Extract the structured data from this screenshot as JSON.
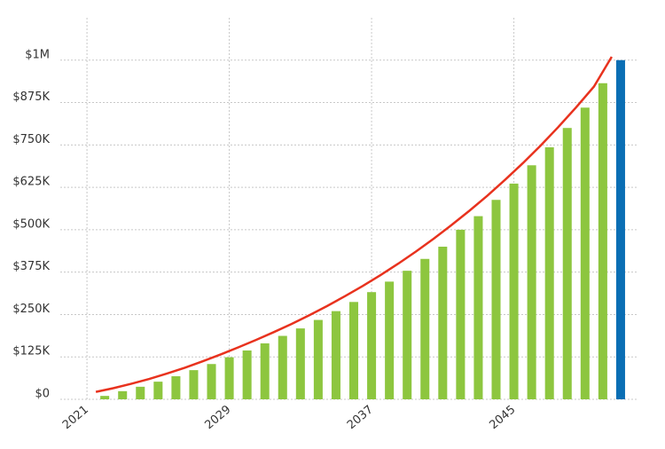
{
  "chart_data": {
    "type": "bar",
    "x": [
      2022,
      2023,
      2024,
      2025,
      2026,
      2027,
      2028,
      2029,
      2030,
      2031,
      2032,
      2033,
      2034,
      2035,
      2036,
      2037,
      2038,
      2039,
      2040,
      2041,
      2042,
      2043,
      2044,
      2045,
      2046,
      2047,
      2048,
      2049,
      2050,
      2051
    ],
    "series": [
      {
        "color": "#8dc63f",
        "values": [
          10000,
          24000,
          37000,
          52000,
          68000,
          86000,
          104000,
          124000,
          144000,
          165000,
          187000,
          209000,
          234000,
          260000,
          287000,
          316000,
          347000,
          379000,
          414000,
          450000,
          500000,
          540000,
          588000,
          636000,
          690000,
          743000,
          800000,
          860000,
          932000,
          null
        ]
      },
      {
        "color": "#0a6eb4",
        "values": [
          null,
          null,
          null,
          null,
          null,
          null,
          null,
          null,
          null,
          null,
          null,
          null,
          null,
          null,
          null,
          null,
          null,
          null,
          null,
          null,
          null,
          null,
          null,
          null,
          null,
          null,
          null,
          null,
          null,
          1000000
        ]
      }
    ],
    "line": {
      "type": "line",
      "color": "#e8321e",
      "x": [
        2021.5,
        2022.5,
        2023.5,
        2024.5,
        2025.5,
        2026.5,
        2027.5,
        2028.5,
        2029.5,
        2030.5,
        2031.5,
        2032.5,
        2033.5,
        2034.5,
        2035.5,
        2036.5,
        2037.5,
        2038.5,
        2039.5,
        2040.5,
        2041.5,
        2042.5,
        2043.5,
        2044.5,
        2045.5,
        2046.5,
        2047.5,
        2048.5,
        2049.5,
        2050.5
      ],
      "values": [
        22000,
        33000,
        46000,
        60000,
        76000,
        93000,
        112000,
        132000,
        153000,
        175000,
        198000,
        222000,
        248000,
        275000,
        304000,
        334000,
        366000,
        400000,
        436000,
        474000,
        514000,
        556000,
        600000,
        647000,
        696000,
        748000,
        803000,
        861000,
        922000,
        1010000
      ]
    },
    "xlim": [
      2019.5,
      2052
    ],
    "xticks": [
      2021,
      2029,
      2037,
      2045
    ],
    "ylim": [
      0,
      1125000
    ],
    "yticks": [
      {
        "value": 0,
        "label": "$0"
      },
      {
        "value": 125000,
        "label": "$125K"
      },
      {
        "value": 250000,
        "label": "$250K"
      },
      {
        "value": 375000,
        "label": "$375K"
      },
      {
        "value": 500000,
        "label": "$500K"
      },
      {
        "value": 625000,
        "label": "$625K"
      },
      {
        "value": 750000,
        "label": "$750K"
      },
      {
        "value": 875000,
        "label": "$875K"
      },
      {
        "value": 1000000,
        "label": "$1M"
      }
    ],
    "grid": true
  }
}
